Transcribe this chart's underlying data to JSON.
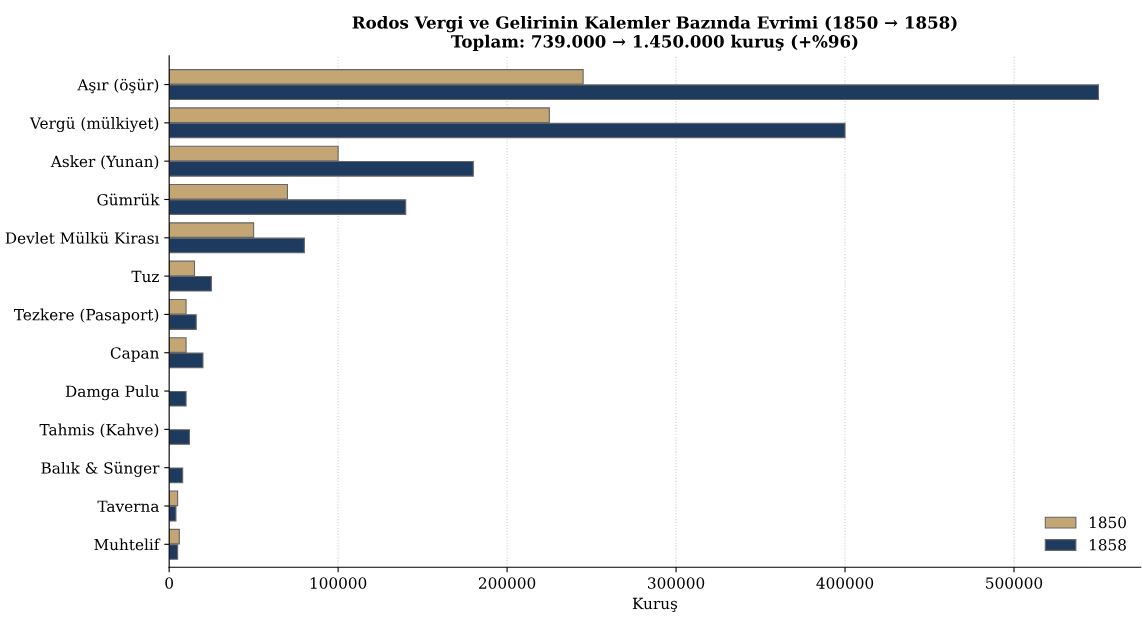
{
  "chart_data": {
    "type": "bar",
    "orientation": "horizontal",
    "title": "Rodos Vergi ve Gelirinin Kalemler Bazında Evrimi (1850 → 1858)\nToplam: 739.000 → 1.450.000 kuruş (+%96)",
    "xlabel": "Kuruş",
    "categories": [
      "Aşır (öşür)",
      "Vergü (mülkiyet)",
      "Asker (Yunan)",
      "Gümrük",
      "Devlet Mülkü Kirası",
      "Tuz",
      "Tezkere (Pasaport)",
      "Capan",
      "Damga Pulu",
      "Tahmis (Kahve)",
      "Balık & Sünger",
      "Taverna",
      "Muhtelif"
    ],
    "series": [
      {
        "name": "1850",
        "color": "#c4a574",
        "values": [
          245000,
          225000,
          100000,
          70000,
          50000,
          15000,
          10000,
          10000,
          0,
          0,
          0,
          5000,
          6000
        ]
      },
      {
        "name": "1858",
        "color": "#1f3a5f",
        "values": [
          550000,
          400000,
          180000,
          140000,
          80000,
          25000,
          16000,
          20000,
          10000,
          12000,
          8000,
          4000,
          5000
        ]
      }
    ],
    "xlim": [
      0,
      575000
    ],
    "xticks": [
      0,
      100000,
      200000,
      300000,
      400000,
      500000
    ],
    "grid": "x",
    "legend": "bottom right"
  }
}
